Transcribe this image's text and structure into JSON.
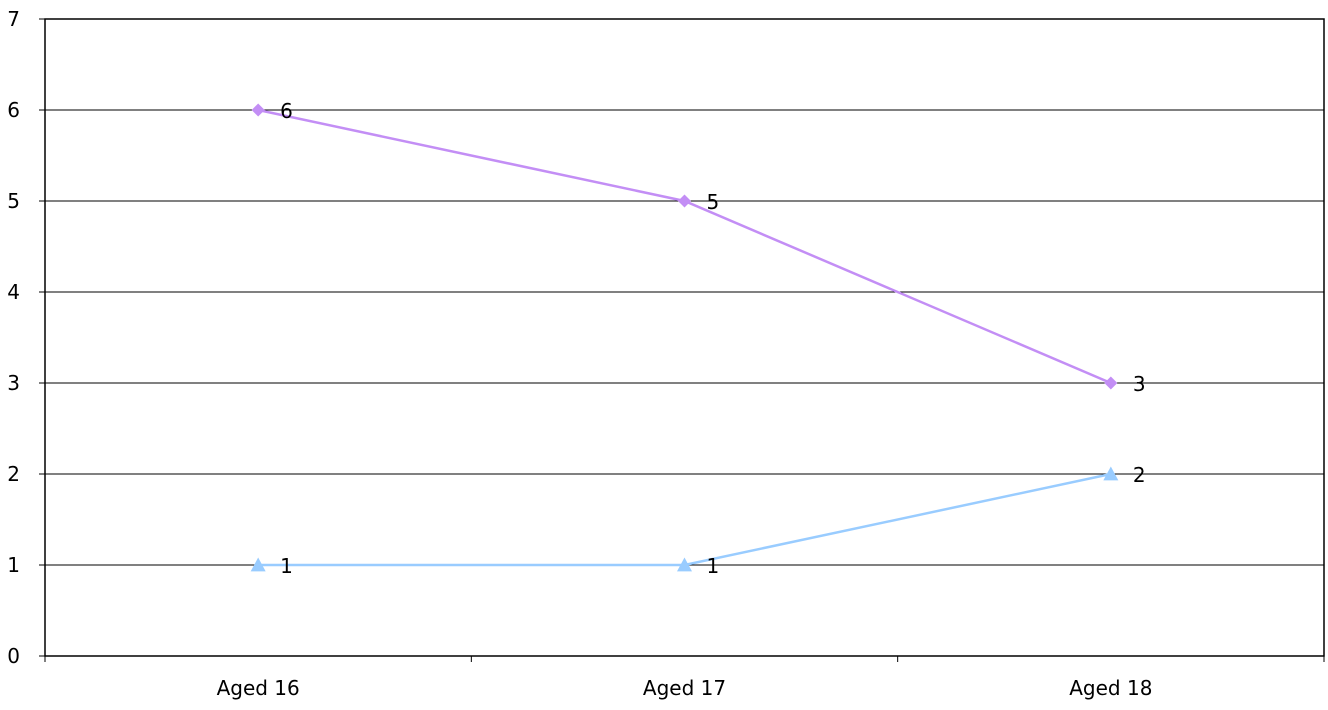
{
  "chart_data": {
    "type": "line",
    "categories": [
      "Aged 16",
      "Aged 17",
      "Aged 18"
    ],
    "ylim": [
      0,
      7
    ],
    "ytick_step": 1,
    "grid": true,
    "legend": "none",
    "series": [
      {
        "values": [
          6,
          5,
          3
        ],
        "color": "#c38ef5",
        "marker": "diamond",
        "data_labels": true
      },
      {
        "values": [
          1,
          1,
          2
        ],
        "color": "#99ccff",
        "marker": "triangle",
        "data_labels": true
      }
    ]
  }
}
